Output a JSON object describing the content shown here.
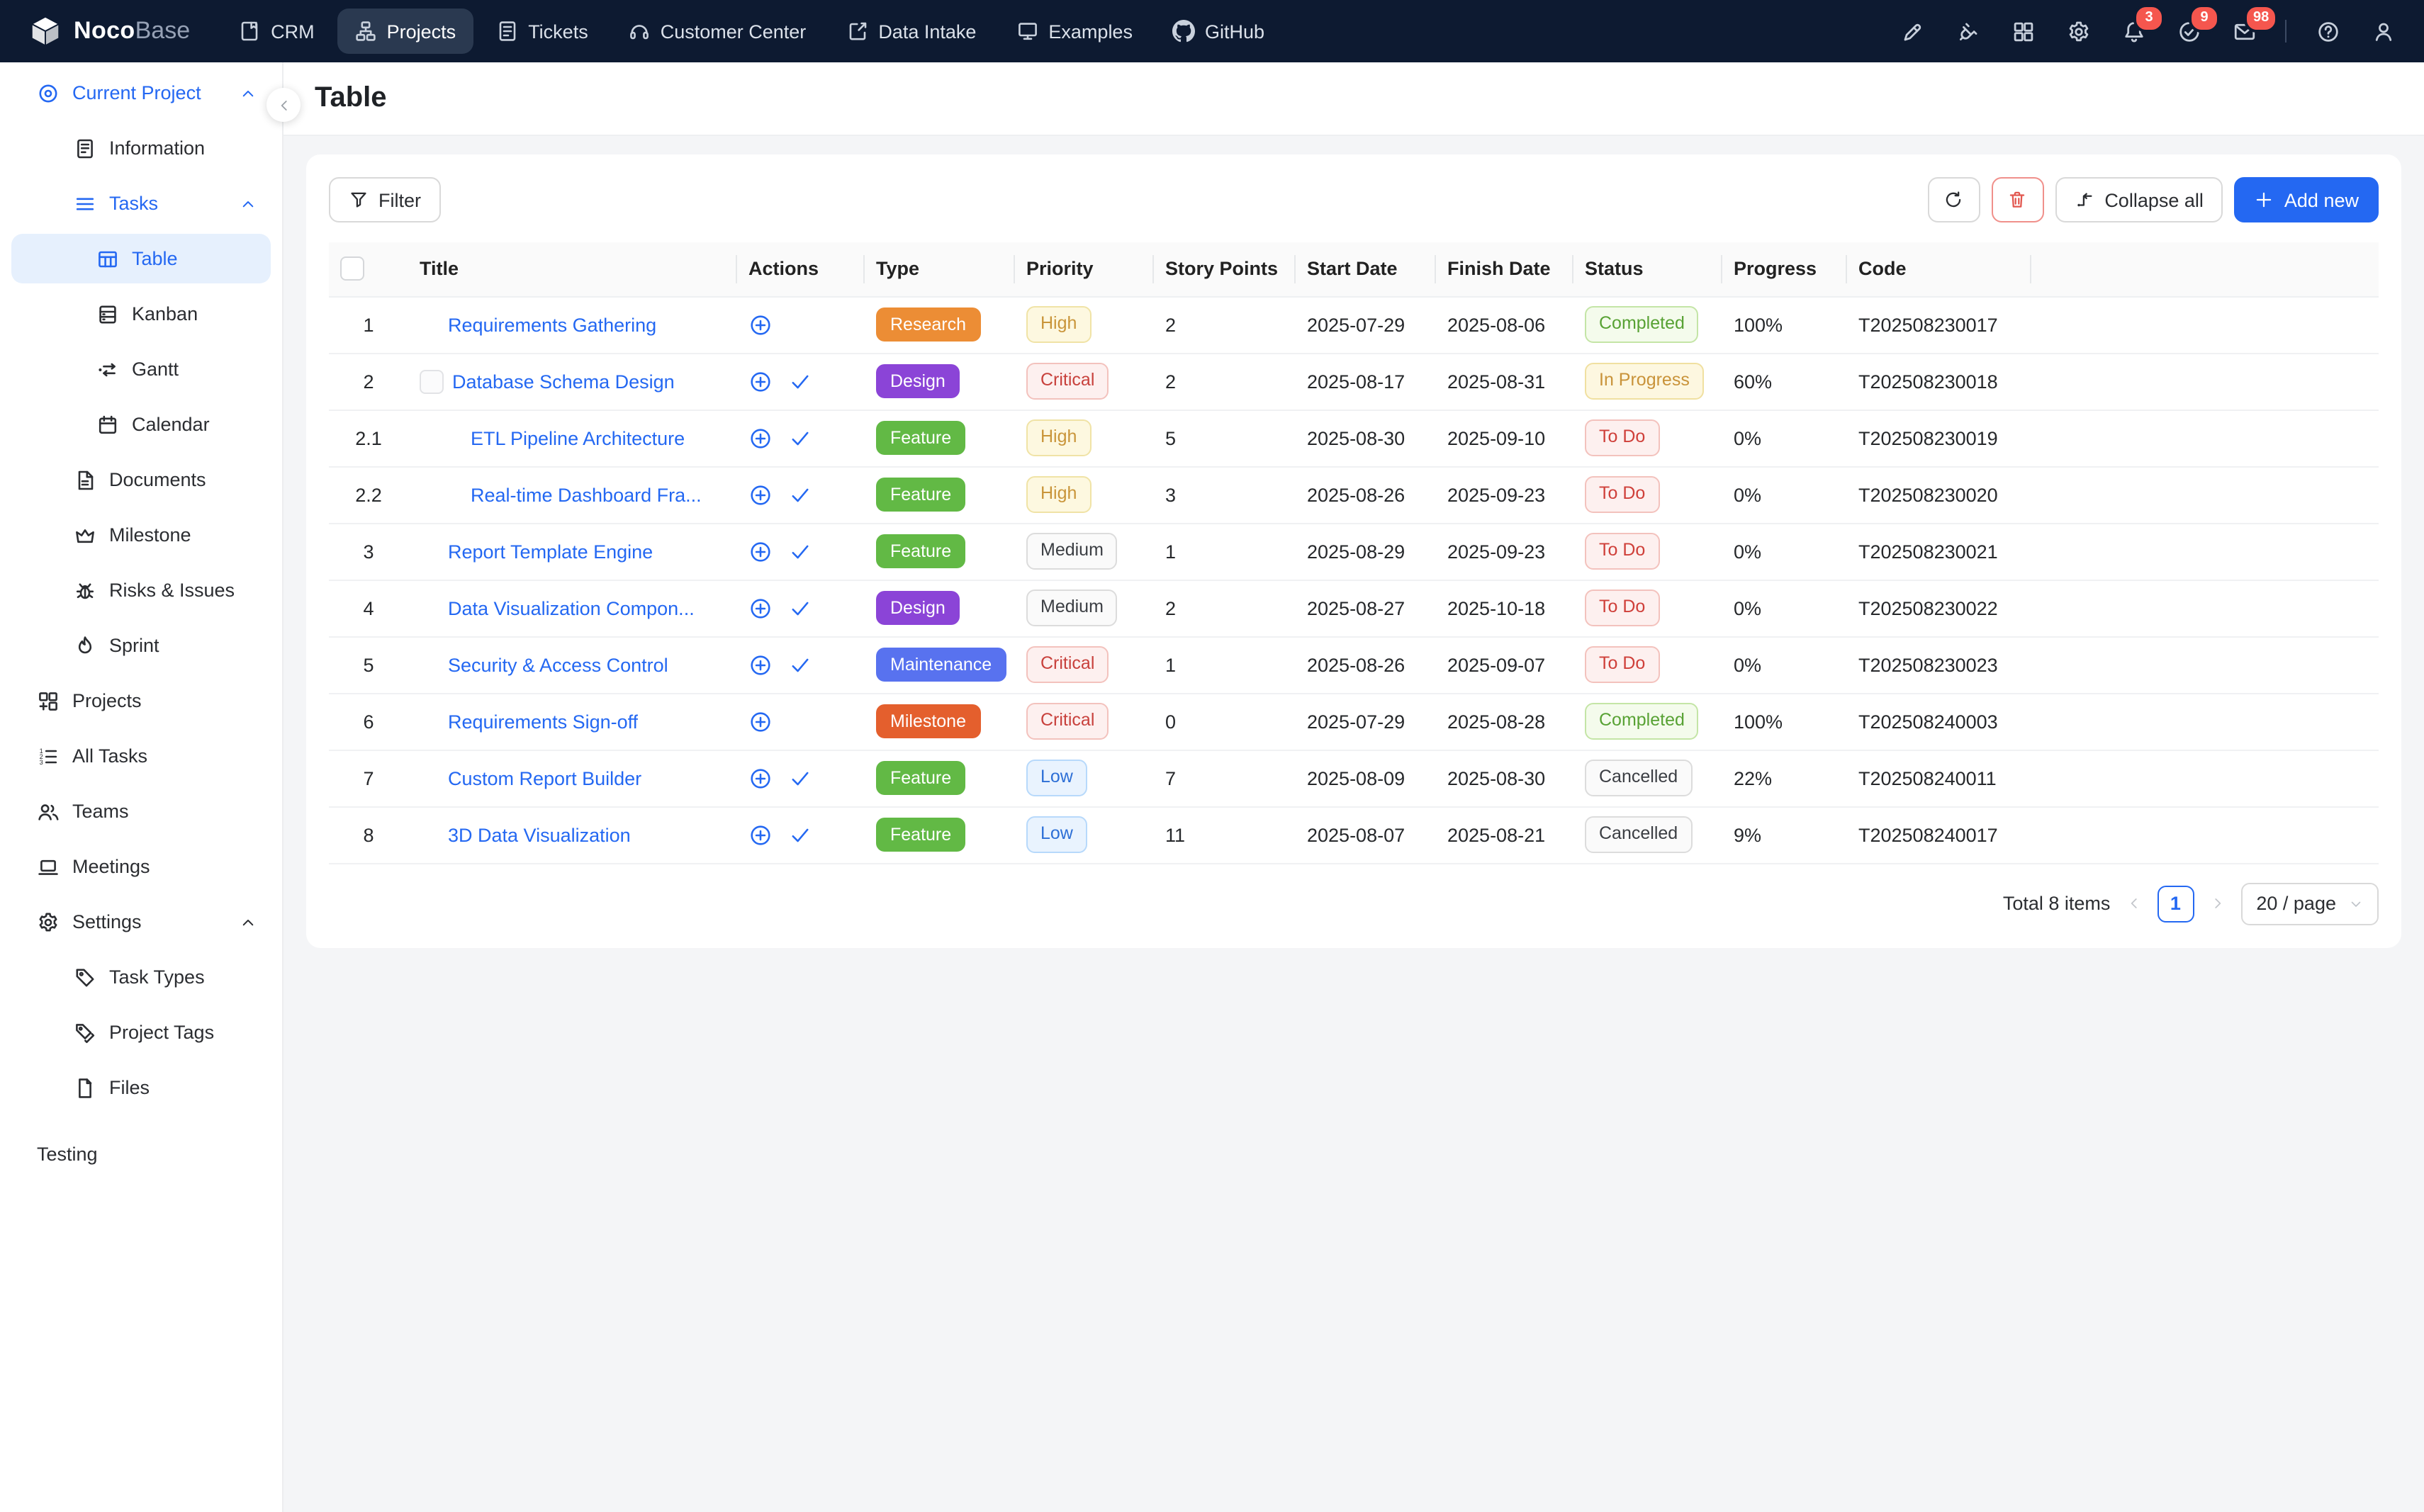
{
  "brand": {
    "name_bold": "Noco",
    "name_light": "Base"
  },
  "topnav": {
    "items": [
      {
        "label": "CRM",
        "icon": "book-icon",
        "active": false
      },
      {
        "label": "Projects",
        "icon": "sitemap-icon",
        "active": true
      },
      {
        "label": "Tickets",
        "icon": "ticket-list-icon",
        "active": false
      },
      {
        "label": "Customer Center",
        "icon": "headset-icon",
        "active": false
      },
      {
        "label": "Data Intake",
        "icon": "form-edit-icon",
        "active": false
      },
      {
        "label": "Examples",
        "icon": "monitor-icon",
        "active": false
      },
      {
        "label": "GitHub",
        "icon": "github-icon",
        "active": false
      }
    ],
    "right_icons": [
      {
        "name": "design-pen-icon"
      },
      {
        "name": "plugin-icon"
      },
      {
        "name": "blocks-icon"
      },
      {
        "name": "settings-gear-icon"
      },
      {
        "name": "notifications-bell-icon",
        "badge": "3"
      },
      {
        "name": "todo-check-icon",
        "badge": "9"
      },
      {
        "name": "messages-mail-icon",
        "badge": "98"
      },
      {
        "name": "divider"
      },
      {
        "name": "help-icon"
      },
      {
        "name": "user-icon"
      }
    ]
  },
  "sidebar": {
    "items": [
      {
        "label": "Current Project",
        "icon": "location-pin-icon",
        "depth": 0,
        "blue": true,
        "chevron": "up"
      },
      {
        "label": "Information",
        "icon": "info-doc-icon",
        "depth": 1
      },
      {
        "label": "Tasks",
        "icon": "menu-lines-icon",
        "depth": 1,
        "blue": true,
        "chevron": "up"
      },
      {
        "label": "Table",
        "icon": "table-icon",
        "depth": 2,
        "active": true
      },
      {
        "label": "Kanban",
        "icon": "kanban-icon",
        "depth": 2
      },
      {
        "label": "Gantt",
        "icon": "gantt-icon",
        "depth": 2
      },
      {
        "label": "Calendar",
        "icon": "calendar-icon",
        "depth": 2
      },
      {
        "label": "Documents",
        "icon": "document-icon",
        "depth": 1
      },
      {
        "label": "Milestone",
        "icon": "crown-icon",
        "depth": 1
      },
      {
        "label": "Risks & Issues",
        "icon": "bug-icon",
        "depth": 1
      },
      {
        "label": "Sprint",
        "icon": "fire-icon",
        "depth": 1
      },
      {
        "label": "Projects",
        "icon": "grid-plus-icon",
        "depth": 0
      },
      {
        "label": "All Tasks",
        "icon": "ordered-list-icon",
        "depth": 0
      },
      {
        "label": "Teams",
        "icon": "team-icon",
        "depth": 0
      },
      {
        "label": "Meetings",
        "icon": "laptop-icon",
        "depth": 0
      },
      {
        "label": "Settings",
        "icon": "gear-icon",
        "depth": 0,
        "chevron": "up"
      },
      {
        "label": "Task Types",
        "icon": "tag-icon",
        "depth": 1
      },
      {
        "label": "Project Tags",
        "icon": "tags-icon",
        "depth": 1
      },
      {
        "label": "Files",
        "icon": "file-icon",
        "depth": 1
      },
      {
        "label": "Testing",
        "depth": 0,
        "plain": true,
        "section_gap": true
      }
    ]
  },
  "page": {
    "title": "Table"
  },
  "toolbar": {
    "filter_label": "Filter",
    "collapse_all_label": "Collapse all",
    "add_new_label": "Add new"
  },
  "table": {
    "columns": [
      "",
      "Title",
      "Actions",
      "Type",
      "Priority",
      "Story Points",
      "Start Date",
      "Finish Date",
      "Status",
      "Progress",
      "Code"
    ],
    "rows": [
      {
        "index": "1",
        "title": "Requirements Gathering",
        "level": 0,
        "collapser": false,
        "check": false,
        "type": "Research",
        "priority": "High",
        "story_points": "2",
        "start_date": "2025-07-29",
        "finish_date": "2025-08-06",
        "status": "Completed",
        "progress": "100%",
        "code": "T202508230017"
      },
      {
        "index": "2",
        "title": "Database Schema Design",
        "level": 0,
        "collapser": true,
        "check": true,
        "type": "Design",
        "priority": "Critical",
        "story_points": "2",
        "start_date": "2025-08-17",
        "finish_date": "2025-08-31",
        "status": "In Progress",
        "progress": "60%",
        "code": "T202508230018"
      },
      {
        "index": "2.1",
        "title": "ETL Pipeline Architecture",
        "level": 1,
        "collapser": false,
        "check": true,
        "type": "Feature",
        "priority": "High",
        "story_points": "5",
        "start_date": "2025-08-30",
        "finish_date": "2025-09-10",
        "status": "To Do",
        "progress": "0%",
        "code": "T202508230019"
      },
      {
        "index": "2.2",
        "title": "Real-time Dashboard Fra...",
        "level": 1,
        "collapser": false,
        "check": true,
        "type": "Feature",
        "priority": "High",
        "story_points": "3",
        "start_date": "2025-08-26",
        "finish_date": "2025-09-23",
        "status": "To Do",
        "progress": "0%",
        "code": "T202508230020"
      },
      {
        "index": "3",
        "title": "Report Template Engine",
        "level": 0,
        "collapser": false,
        "check": true,
        "type": "Feature",
        "priority": "Medium",
        "story_points": "1",
        "start_date": "2025-08-29",
        "finish_date": "2025-09-23",
        "status": "To Do",
        "progress": "0%",
        "code": "T202508230021"
      },
      {
        "index": "4",
        "title": "Data Visualization Compon...",
        "level": 0,
        "collapser": false,
        "check": true,
        "type": "Design",
        "priority": "Medium",
        "story_points": "2",
        "start_date": "2025-08-27",
        "finish_date": "2025-10-18",
        "status": "To Do",
        "progress": "0%",
        "code": "T202508230022"
      },
      {
        "index": "5",
        "title": "Security & Access Control",
        "level": 0,
        "collapser": false,
        "check": true,
        "type": "Maintenance",
        "priority": "Critical",
        "story_points": "1",
        "start_date": "2025-08-26",
        "finish_date": "2025-09-07",
        "status": "To Do",
        "progress": "0%",
        "code": "T202508230023"
      },
      {
        "index": "6",
        "title": "Requirements Sign-off",
        "level": 0,
        "collapser": false,
        "check": false,
        "type": "Milestone",
        "priority": "Critical",
        "story_points": "0",
        "start_date": "2025-07-29",
        "finish_date": "2025-08-28",
        "status": "Completed",
        "progress": "100%",
        "code": "T202508240003"
      },
      {
        "index": "7",
        "title": "Custom Report Builder",
        "level": 0,
        "collapser": false,
        "check": true,
        "type": "Feature",
        "priority": "Low",
        "story_points": "7",
        "start_date": "2025-08-09",
        "finish_date": "2025-08-30",
        "status": "Cancelled",
        "progress": "22%",
        "code": "T202508240011"
      },
      {
        "index": "8",
        "title": "3D Data Visualization",
        "level": 0,
        "collapser": false,
        "check": true,
        "type": "Feature",
        "priority": "Low",
        "story_points": "11",
        "start_date": "2025-08-07",
        "finish_date": "2025-08-21",
        "status": "Cancelled",
        "progress": "9%",
        "code": "T202508240017"
      }
    ]
  },
  "pagination": {
    "total_label": "Total 8 items",
    "page": "1",
    "page_size": "20 / page"
  },
  "colors": {
    "accent_blue": "#2468f2",
    "topnav_bg": "#0d1a31",
    "badge_red": "#f5564e",
    "type": {
      "Research": "#ec8d35",
      "Design": "#8b44d7",
      "Feature": "#62b945",
      "Maintenance": "#5872ef",
      "Milestone": "#e45f2d"
    },
    "priority": {
      "High": {
        "bg": "#fdf8e0",
        "border": "#f0e3a6",
        "text": "#c9953a"
      },
      "Critical": {
        "bg": "#fdf0ef",
        "border": "#f3c2bd",
        "text": "#c8413c"
      },
      "Medium": {
        "bg": "#fafafa",
        "border": "#dcdcdc",
        "text": "#3b3e43"
      },
      "Low": {
        "bg": "#e9f3fe",
        "border": "#b7d9fb",
        "text": "#2d6fd6"
      }
    },
    "status": {
      "Completed": {
        "bg": "#f4fbec",
        "border": "#c4e5a6",
        "text": "#58a234"
      },
      "In Progress": {
        "bg": "#fdf7e0",
        "border": "#f0e0a0",
        "text": "#c9933a"
      },
      "To Do": {
        "bg": "#fdf0ef",
        "border": "#f3c2bd",
        "text": "#cf3f39"
      },
      "Cancelled": {
        "bg": "#fafafa",
        "border": "#dcdcdc",
        "text": "#3b3e43"
      }
    }
  }
}
